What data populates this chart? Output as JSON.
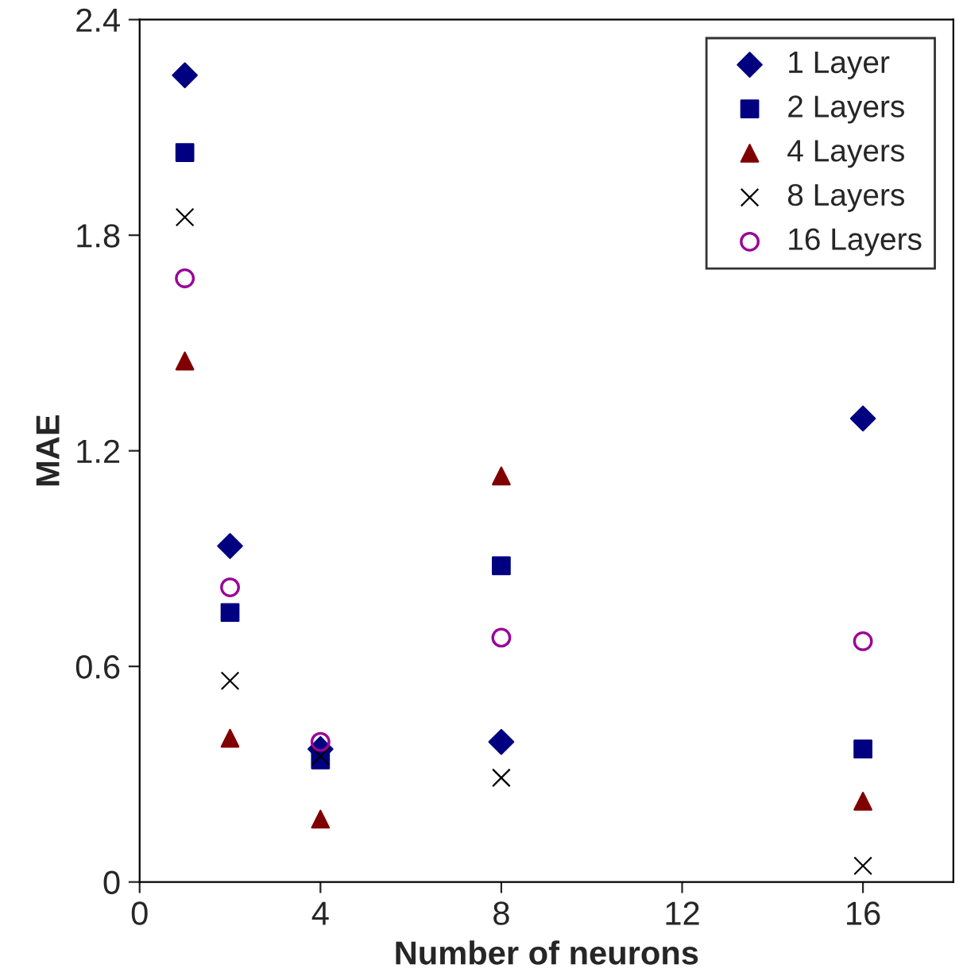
{
  "chart_data": {
    "type": "scatter",
    "xlabel": "Number of neurons",
    "ylabel": "MAE",
    "x": [
      1,
      2,
      4,
      8,
      16
    ],
    "series": [
      {
        "name": "1 Layer",
        "color": "#000080",
        "marker": "diamond",
        "values": [
          2.245,
          0.935,
          0.37,
          0.39,
          1.29
        ]
      },
      {
        "name": "2 Layers",
        "color": "#000080",
        "marker": "square",
        "values": [
          2.03,
          0.75,
          0.34,
          0.88,
          0.37
        ]
      },
      {
        "name": "4 Layers",
        "color": "#800000",
        "marker": "triangle",
        "values": [
          1.45,
          0.4,
          0.175,
          1.13,
          0.225
        ]
      },
      {
        "name": "8 Layers",
        "color": "#000000",
        "marker": "cross",
        "values": [
          1.85,
          0.56,
          0.35,
          0.29,
          0.045
        ]
      },
      {
        "name": "16 Layers",
        "color": "#990099",
        "marker": "circle",
        "values": [
          1.68,
          0.82,
          0.39,
          0.68,
          0.67
        ]
      }
    ],
    "xlim": [
      0,
      18
    ],
    "xticks": [
      0,
      4,
      8,
      12,
      16
    ],
    "ylim": [
      0,
      2.4
    ],
    "yticks": [
      0,
      0.6,
      1.2,
      1.8,
      2.4
    ],
    "grid": false,
    "legend": "top right"
  }
}
